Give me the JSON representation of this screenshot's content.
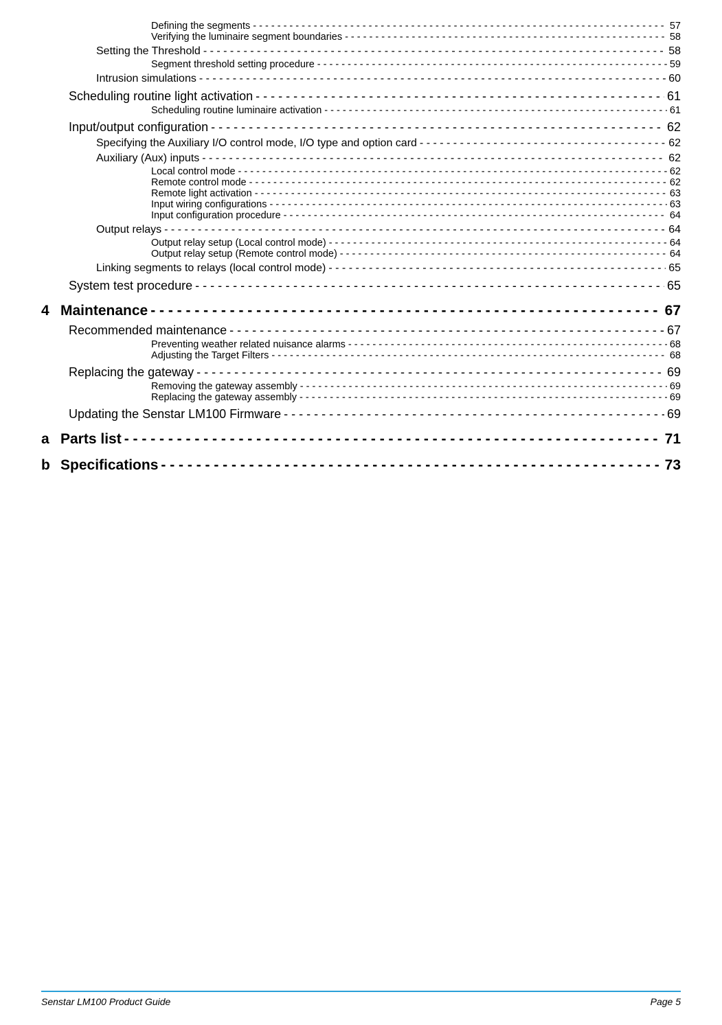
{
  "leader_spaced": " -",
  "leader_packed": "-",
  "toc": [
    {
      "level": "h4",
      "indent": 4,
      "leader": "spaced",
      "label": "Defining the segments",
      "page": "57"
    },
    {
      "level": "h4",
      "indent": 4,
      "leader": "spaced",
      "label": "Verifying the luminaire segment boundaries",
      "page": "58"
    },
    {
      "level": "h2",
      "indent": 2,
      "leader": "spaced",
      "label": "Setting the Threshold",
      "page": "58"
    },
    {
      "level": "h4",
      "indent": 4,
      "leader": "spaced",
      "label": "Segment threshold setting procedure",
      "page": "59"
    },
    {
      "level": "h2",
      "indent": 2,
      "leader": "spaced",
      "label": "Intrusion simulations",
      "page": "60"
    },
    {
      "level": "h1",
      "indent": 1,
      "leader": "spaced",
      "label": "Scheduling routine light activation",
      "page": "61"
    },
    {
      "level": "h4",
      "indent": 4,
      "leader": "spaced",
      "label": "Scheduling routine luminaire activation",
      "page": "61"
    },
    {
      "level": "h1",
      "indent": 1,
      "leader": "spaced",
      "label": "Input/output configuration",
      "page": "62"
    },
    {
      "level": "h2",
      "indent": 2,
      "leader": "spaced",
      "label": "Specifying the Auxiliary I/O control mode, I/O type and option card",
      "page": "62"
    },
    {
      "level": "h2",
      "indent": 2,
      "leader": "spaced",
      "label": "Auxiliary (Aux) inputs",
      "page": "62"
    },
    {
      "level": "h4",
      "indent": 4,
      "leader": "spaced",
      "label": "Local control mode",
      "page": "62"
    },
    {
      "level": "h4",
      "indent": 4,
      "leader": "spaced",
      "label": "Remote control mode",
      "page": "62"
    },
    {
      "level": "h4",
      "indent": 4,
      "leader": "spaced",
      "label": "Remote light activation",
      "page": "63"
    },
    {
      "level": "h4",
      "indent": 4,
      "leader": "spaced",
      "label": "Input wiring configurations",
      "page": "63"
    },
    {
      "level": "h4",
      "indent": 4,
      "leader": "spaced",
      "label": "Input configuration procedure",
      "page": "64"
    },
    {
      "level": "h2",
      "indent": 2,
      "leader": "spaced",
      "label": "Output relays",
      "page": "64"
    },
    {
      "level": "h4",
      "indent": 4,
      "leader": "spaced",
      "label": "Output relay setup (Local control mode)",
      "page": "64"
    },
    {
      "level": "h4",
      "indent": 4,
      "leader": "spaced",
      "label": "Output relay setup (Remote control mode)",
      "page": "64"
    },
    {
      "level": "h2",
      "indent": 2,
      "leader": "spaced",
      "label": "Linking segments to relays (local control mode)",
      "page": "65"
    },
    {
      "level": "h1",
      "indent": 1,
      "leader": "spaced",
      "label": "System test procedure",
      "page": "65"
    },
    {
      "level": "chapter",
      "indent": 0,
      "leader": "spaced",
      "num": "4",
      "label": "Maintenance",
      "page": "67"
    },
    {
      "level": "h1",
      "indent": 1,
      "leader": "spaced",
      "label": "Recommended maintenance",
      "page": "67"
    },
    {
      "level": "h4",
      "indent": 4,
      "leader": "spaced",
      "label": "Preventing weather related nuisance alarms",
      "page": "68"
    },
    {
      "level": "h4",
      "indent": 4,
      "leader": "spaced",
      "label": "Adjusting the Target Filters",
      "page": "68"
    },
    {
      "level": "h1",
      "indent": 1,
      "leader": "spaced",
      "label": "Replacing the gateway",
      "page": "69"
    },
    {
      "level": "h4",
      "indent": 4,
      "leader": "spaced",
      "label": "Removing the gateway assembly",
      "page": "69"
    },
    {
      "level": "h4",
      "indent": 4,
      "leader": "spaced",
      "label": "Replacing the gateway assembly",
      "page": "69"
    },
    {
      "level": "h1",
      "indent": 1,
      "leader": "spaced",
      "label": "Updating the Senstar LM100 Firmware",
      "page": "69"
    },
    {
      "level": "chapter",
      "indent": 0,
      "leader": "spaced",
      "num": "a",
      "label": "Parts list",
      "page": "71"
    },
    {
      "level": "chapter",
      "indent": 0,
      "leader": "spaced",
      "num": "b",
      "label": "Specifications",
      "page": "73"
    }
  ],
  "footer": {
    "left": "Senstar LM100 Product Guide",
    "right": "Page 5",
    "rule_color": "#2aa0d8"
  },
  "colors": {
    "text": "#000000",
    "background": "#ffffff"
  }
}
